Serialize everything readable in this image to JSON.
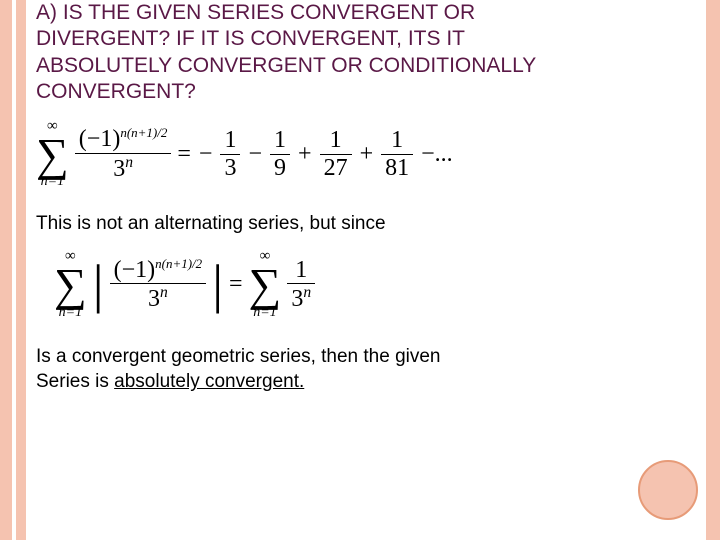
{
  "title": {
    "line1": "A) IS THE GIVEN SERIES CONVERGENT OR",
    "line2": "DIVERGENT? IF IT IS CONVERGENT, ITS IT",
    "line3": "ABSOLUTELY CONVERGENT OR CONDITIONALLY",
    "line4": "CONVERGENT?"
  },
  "eq1": {
    "sigma_top": "∞",
    "sigma_bot": "n=1",
    "frac_num_base": "(−1)",
    "frac_num_exp": "n(n+1)/2",
    "frac_den_base": "3",
    "frac_den_exp": "n",
    "rhs_parts": {
      "eq": "=",
      "t1_sign": "−",
      "t1_num": "1",
      "t1_den": "3",
      "t2_sign": "−",
      "t2_num": "1",
      "t2_den": "9",
      "t3_sign": "+",
      "t3_num": "1",
      "t3_den": "27",
      "t4_sign": "+",
      "t4_num": "1",
      "t4_den": "81",
      "tail": "−..."
    }
  },
  "mid": "This is not an alternating series, but  since",
  "eq2": {
    "sigma_top": "∞",
    "sigma_bot": "n=1",
    "frac_num_base": "(−1)",
    "frac_num_exp": "n(n+1)/2",
    "frac_den_base": "3",
    "frac_den_exp": "n",
    "eq": "=",
    "rhs_sigma_top": "∞",
    "rhs_sigma_bot": "n=1",
    "rhs_num": "1",
    "rhs_den_base": "3",
    "rhs_den_exp": "n"
  },
  "bottom": {
    "line1": "Is a convergent geometric series, then the given",
    "line2a": "Series is ",
    "line2b": "absolutely convergent."
  },
  "colors": {
    "stripe": "#f5c3b0",
    "circle_border": "#e79b78",
    "title_color": "#5a1846",
    "background": "#ffffff"
  }
}
